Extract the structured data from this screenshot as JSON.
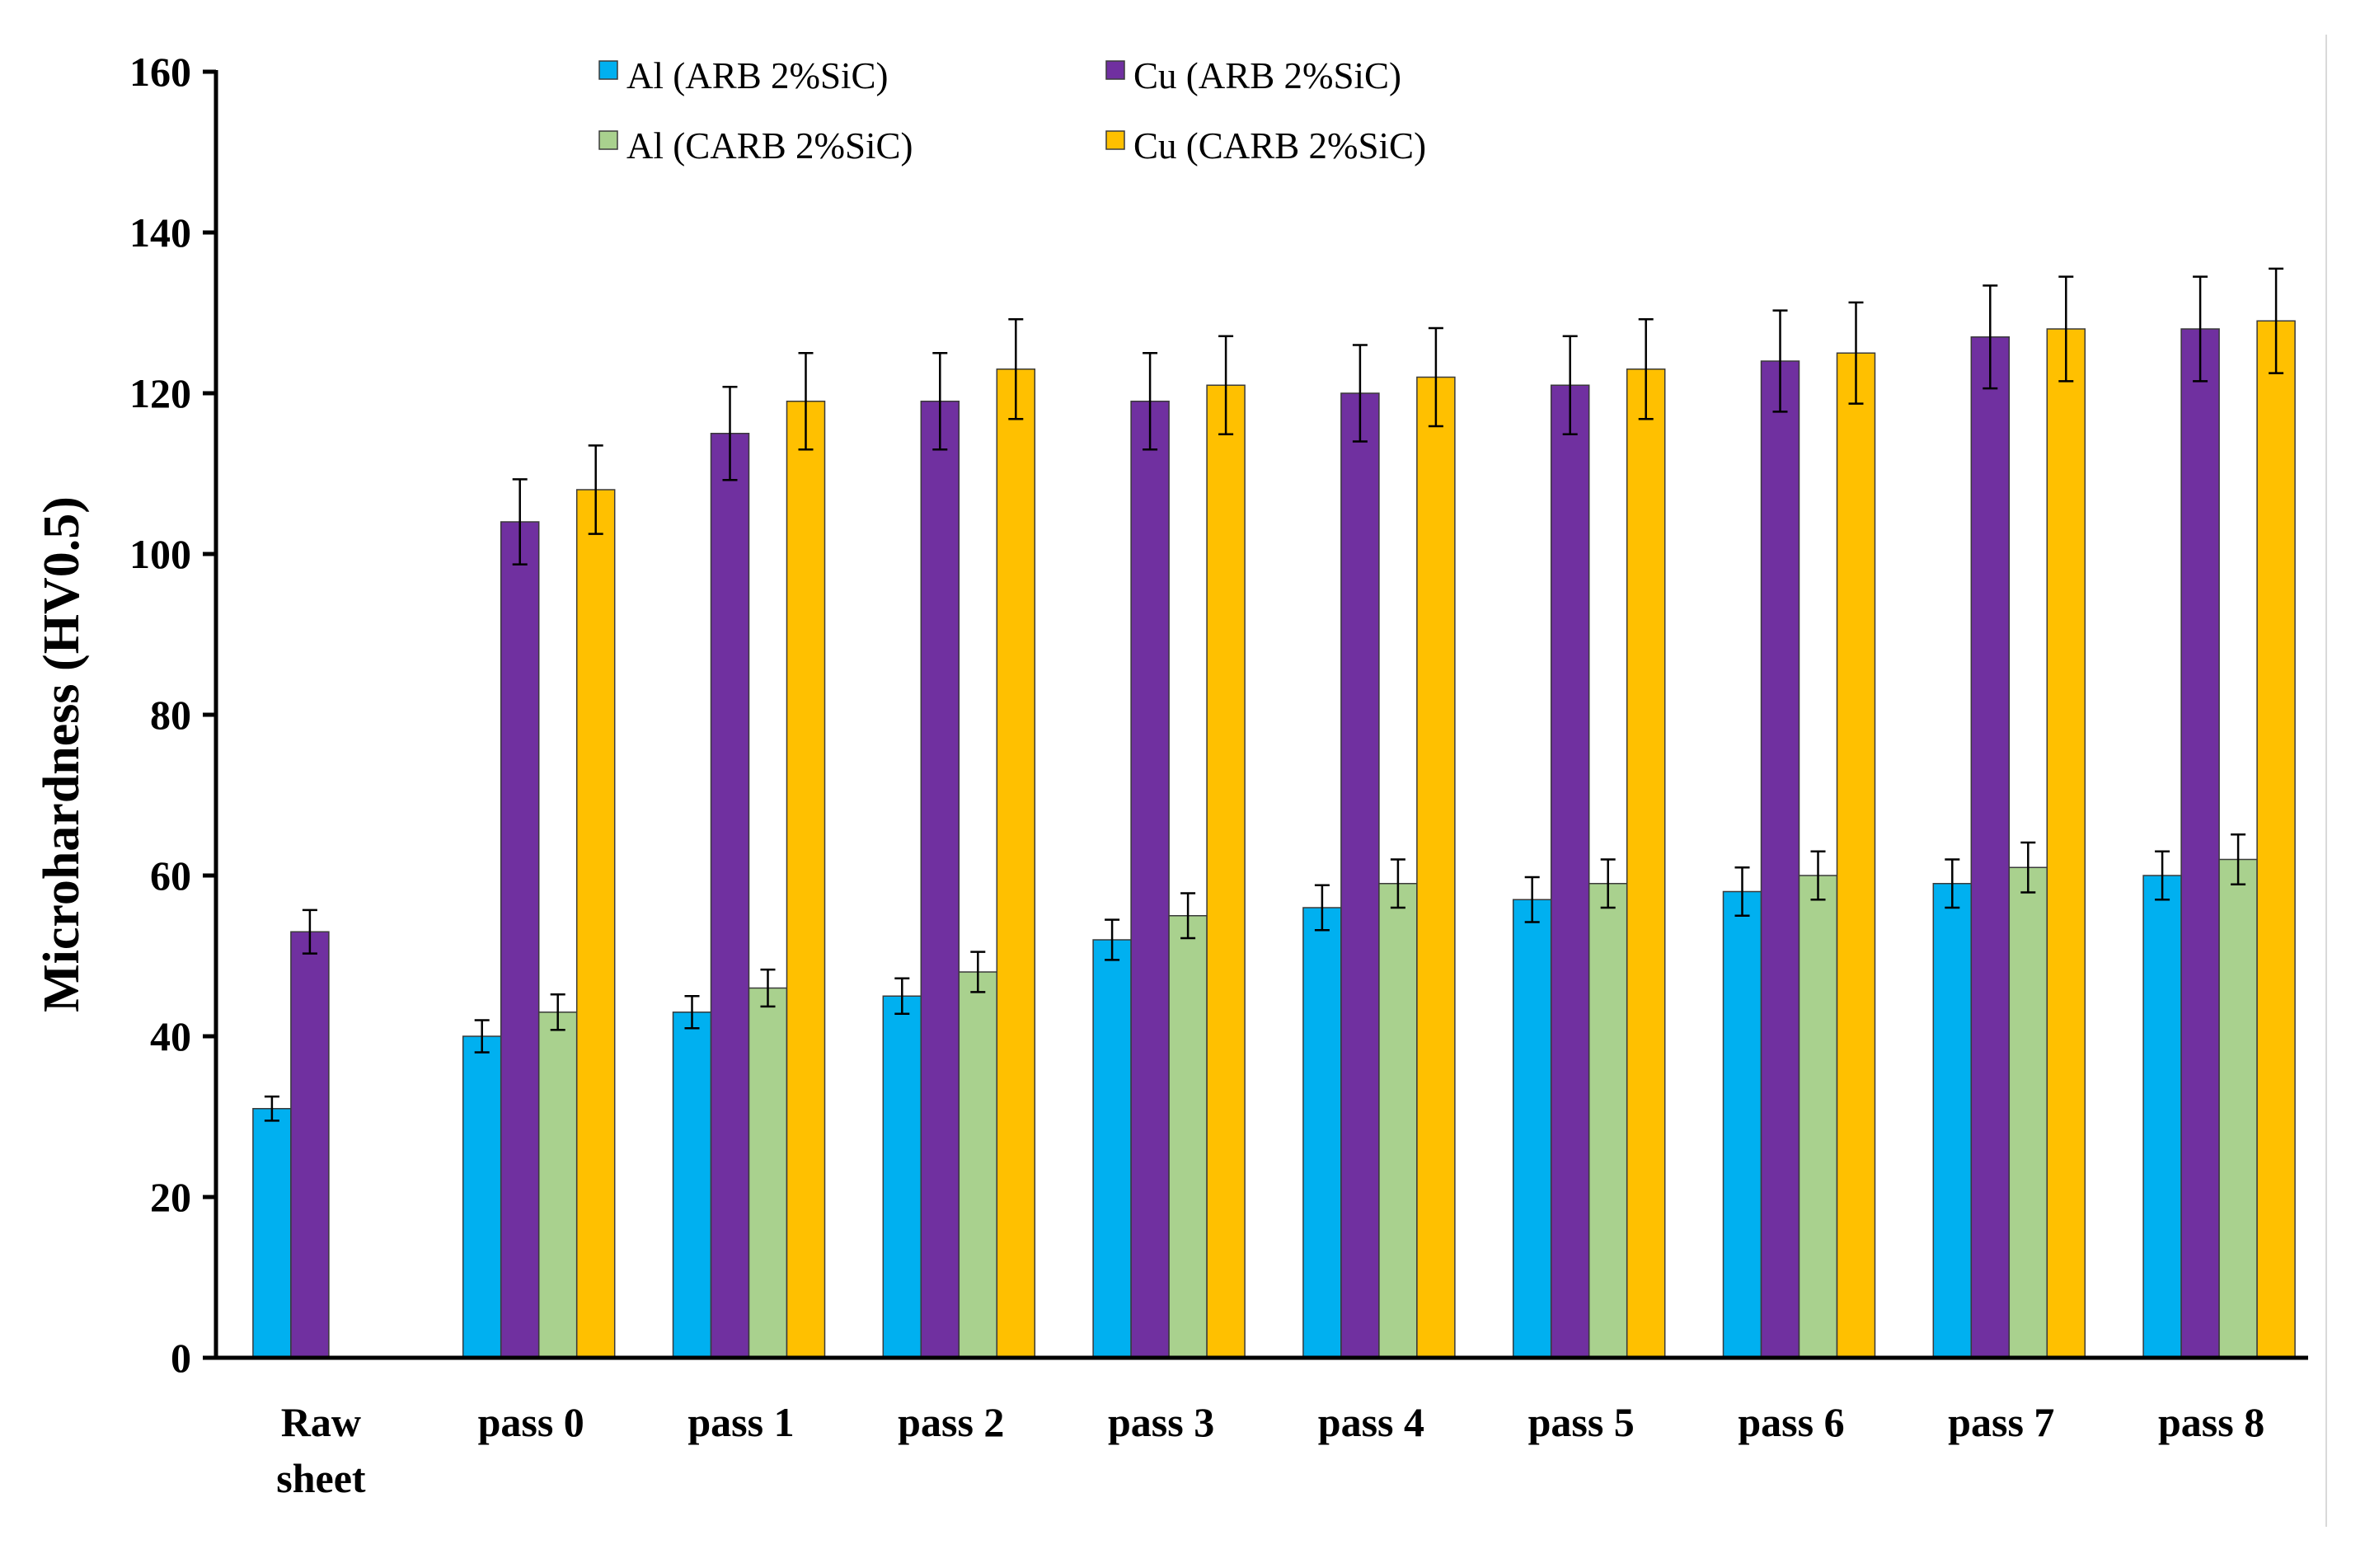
{
  "chart_data": {
    "type": "bar",
    "title": "",
    "xlabel": "",
    "ylabel": "Microhardness (HV0.5)",
    "ylim": [
      0,
      160
    ],
    "yticks": [
      0,
      20,
      40,
      60,
      80,
      100,
      120,
      140,
      160
    ],
    "ytick_labels": [
      "0",
      "20",
      "40",
      "60",
      "80",
      "100",
      "120",
      "140",
      "160"
    ],
    "grid": false,
    "legend_position": "top-center",
    "categories": [
      [
        "Raw",
        "sheet"
      ],
      [
        "pass 0"
      ],
      [
        "pass 1"
      ],
      [
        "pass 2"
      ],
      [
        "pass 3"
      ],
      [
        "pass 4"
      ],
      [
        "pass 5"
      ],
      [
        "pass 6"
      ],
      [
        "pass 7"
      ],
      [
        "pass 8"
      ]
    ],
    "series": [
      {
        "name": "Al (ARB 2%SiC)",
        "color": "#00B0F0",
        "values": [
          31,
          40,
          43,
          45,
          52,
          56,
          57,
          58,
          59,
          60
        ],
        "errors": [
          1.5,
          2,
          2,
          2.2,
          2.5,
          2.8,
          2.8,
          3,
          3,
          3
        ]
      },
      {
        "name": "Cu (ARB 2%SiC)",
        "color": "#7030A0",
        "values": [
          53,
          104,
          115,
          119,
          119,
          120,
          121,
          124,
          127,
          128
        ],
        "errors": [
          2.7,
          5.3,
          5.8,
          6,
          6,
          6,
          6.1,
          6.3,
          6.4,
          6.5
        ]
      },
      {
        "name": "Al (CARB 2%SiC)",
        "color": "#A9D18E",
        "values": [
          null,
          43,
          46,
          48,
          55,
          59,
          59,
          60,
          61,
          62
        ],
        "errors": [
          null,
          2.2,
          2.3,
          2.5,
          2.8,
          3,
          3,
          3,
          3.1,
          3.1
        ]
      },
      {
        "name": "Cu (CARB 2%SiC)",
        "color": "#FFC000",
        "values": [
          null,
          108,
          119,
          123,
          121,
          122,
          123,
          125,
          128,
          129
        ],
        "errors": [
          null,
          5.5,
          6,
          6.2,
          6.1,
          6.1,
          6.2,
          6.3,
          6.5,
          6.5
        ]
      }
    ]
  }
}
